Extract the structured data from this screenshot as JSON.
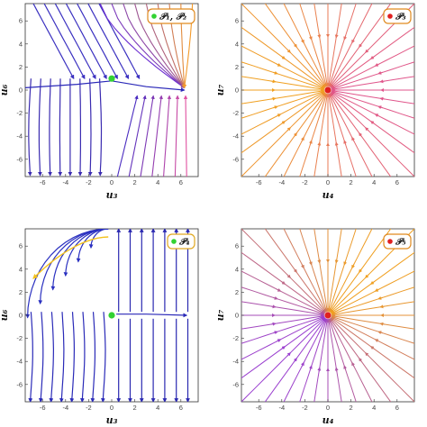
{
  "panels": [
    {
      "id": "top-left",
      "xlabel": "u₃",
      "ylabel": "u₆",
      "legend": "𝒫₁, 𝒫₂",
      "legend_color": "#e08a1e",
      "point_color": "#32d232",
      "point": [
        0,
        1
      ],
      "x_ticks": [
        "-6",
        "-4",
        "-2",
        "0",
        "2",
        "4",
        "6"
      ],
      "y_ticks": [
        "6",
        "4",
        "2",
        "0",
        "-2",
        "-4",
        "-6"
      ],
      "style": "flow-top"
    },
    {
      "id": "top-right",
      "xlabel": "u₄",
      "ylabel": "u₇",
      "legend": "𝒫₃",
      "legend_color": "#e08a1e",
      "point_color": "#e02020",
      "point": [
        0,
        0
      ],
      "x_ticks": [
        "-6",
        "-4",
        "-2",
        "0",
        "2",
        "4",
        "6"
      ],
      "y_ticks": [
        "6",
        "4",
        "2",
        "0",
        "-2",
        "-4",
        "-6"
      ],
      "style": "sink"
    },
    {
      "id": "bottom-left",
      "xlabel": "u₃",
      "ylabel": "u₆",
      "legend": "𝒫₄",
      "legend_color": "#e0a820",
      "point_color": "#32d232",
      "point": [
        0,
        0
      ],
      "x_ticks": [
        "-6",
        "-4",
        "-2",
        "0",
        "2",
        "4",
        "6"
      ],
      "y_ticks": [
        "6",
        "4",
        "2",
        "0",
        "-2",
        "-4",
        "-6"
      ],
      "style": "flow-bottom"
    },
    {
      "id": "bottom-right",
      "xlabel": "u₄",
      "ylabel": "u₇",
      "legend": "𝒫₅",
      "legend_color": "#e08a1e",
      "point_color": "#e02020",
      "point": [
        0,
        0
      ],
      "x_ticks": [
        "-6",
        "-4",
        "-2",
        "0",
        "2",
        "4",
        "6"
      ],
      "y_ticks": [
        "6",
        "4",
        "2",
        "0",
        "-2",
        "-4",
        "-6"
      ],
      "style": "sink"
    }
  ]
}
